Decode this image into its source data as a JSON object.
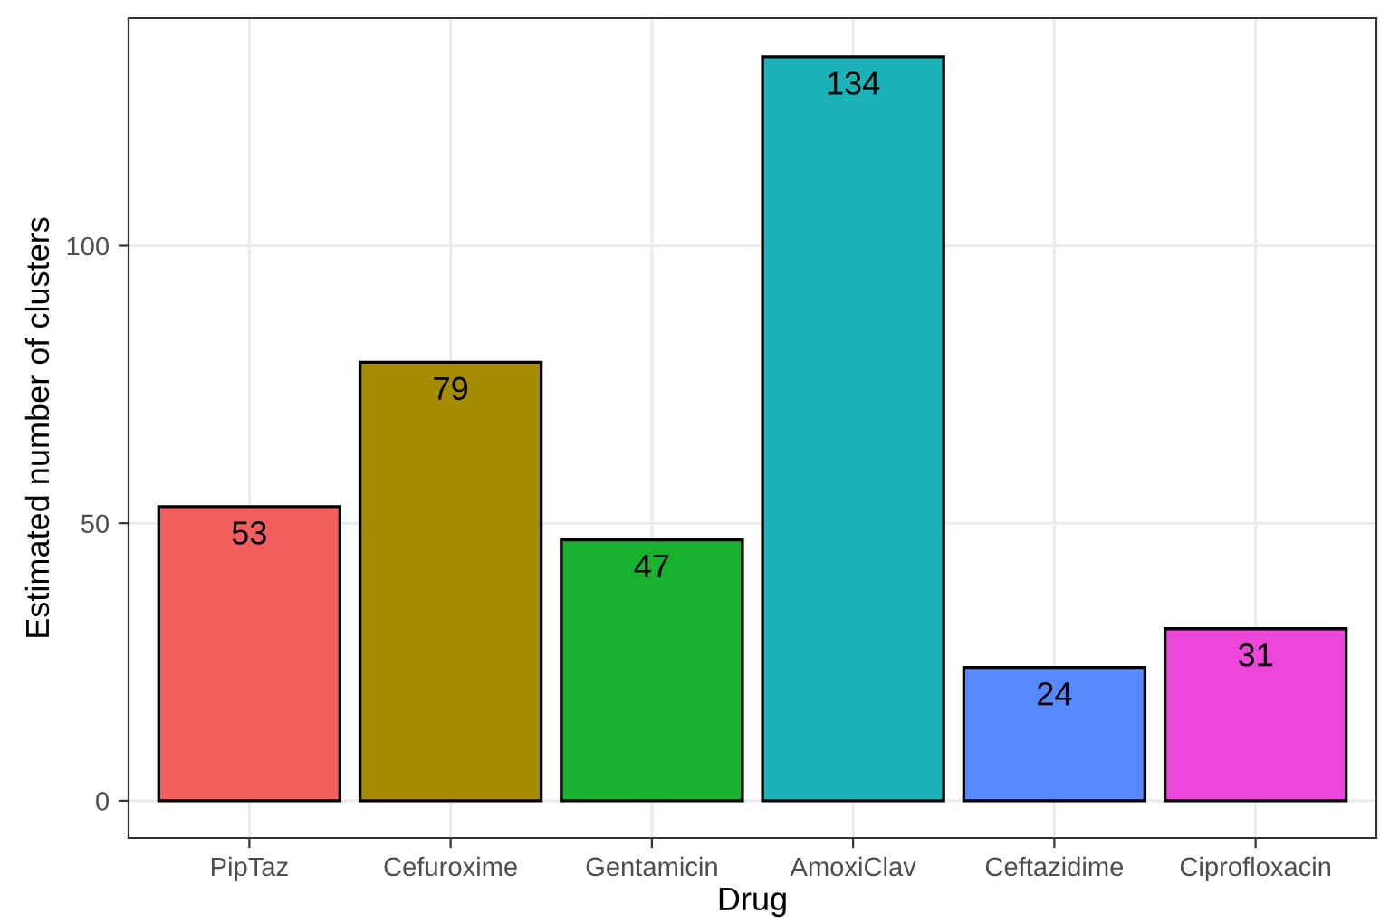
{
  "chart_data": {
    "type": "bar",
    "xlabel": "Drug",
    "ylabel": "Estimated number of clusters",
    "categories": [
      "PipTaz",
      "Cefuroxime",
      "Gentamicin",
      "AmoxiClav",
      "Ceftazidime",
      "Ciprofloxacin"
    ],
    "values": [
      53,
      79,
      47,
      134,
      24,
      31
    ],
    "colors": [
      "#f35f5f",
      "#a58b00",
      "#18b22e",
      "#1bb3b8",
      "#5689ff",
      "#ee45db"
    ],
    "ylim": [
      -6.7,
      141
    ],
    "yticks": [
      0,
      50,
      100
    ],
    "grid": true,
    "data_labels": true
  }
}
